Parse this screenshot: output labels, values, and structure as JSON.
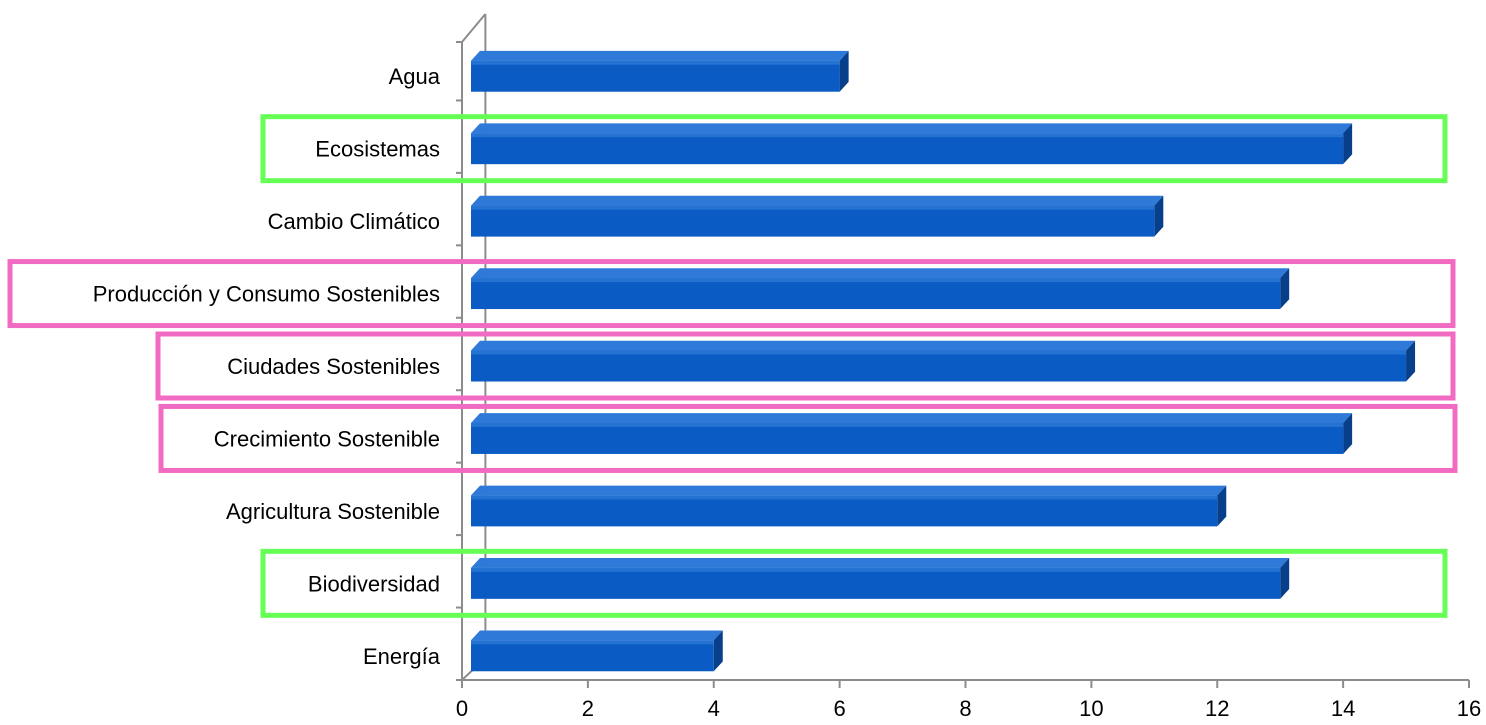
{
  "chart_data": {
    "type": "bar",
    "orientation": "horizontal",
    "categories": [
      "Agua",
      "Ecosistemas",
      "Cambio Climático",
      "Producción y Consumo Sostenibles",
      "Ciudades Sostenibles",
      "Crecimiento Sostenible",
      "Agricultura Sostenible",
      "Biodiversidad",
      "Energía"
    ],
    "values": [
      6,
      14,
      11,
      13,
      15,
      14,
      12,
      13,
      4
    ],
    "xlim": [
      0,
      16
    ],
    "x_ticks": [
      "0",
      "2",
      "4",
      "6",
      "8",
      "10",
      "12",
      "14",
      "16"
    ],
    "title": "",
    "xlabel": "",
    "ylabel": "",
    "grid": false,
    "bar_style": "3d",
    "colors": {
      "bar_front": "#0a5cc4",
      "bar_top": "#2f7ad8",
      "bar_side": "#083f8a",
      "axis": "#8c8c8c",
      "highlight_green": "#66ff55",
      "highlight_pink": "#f26bc3"
    },
    "highlights": [
      {
        "category": "Ecosistemas",
        "color": "green"
      },
      {
        "category": "Producción y Consumo Sostenibles",
        "color": "pink"
      },
      {
        "category": "Ciudades Sostenibles",
        "color": "pink"
      },
      {
        "category": "Crecimiento Sostenible",
        "color": "pink"
      },
      {
        "category": "Biodiversidad",
        "color": "green"
      }
    ]
  }
}
